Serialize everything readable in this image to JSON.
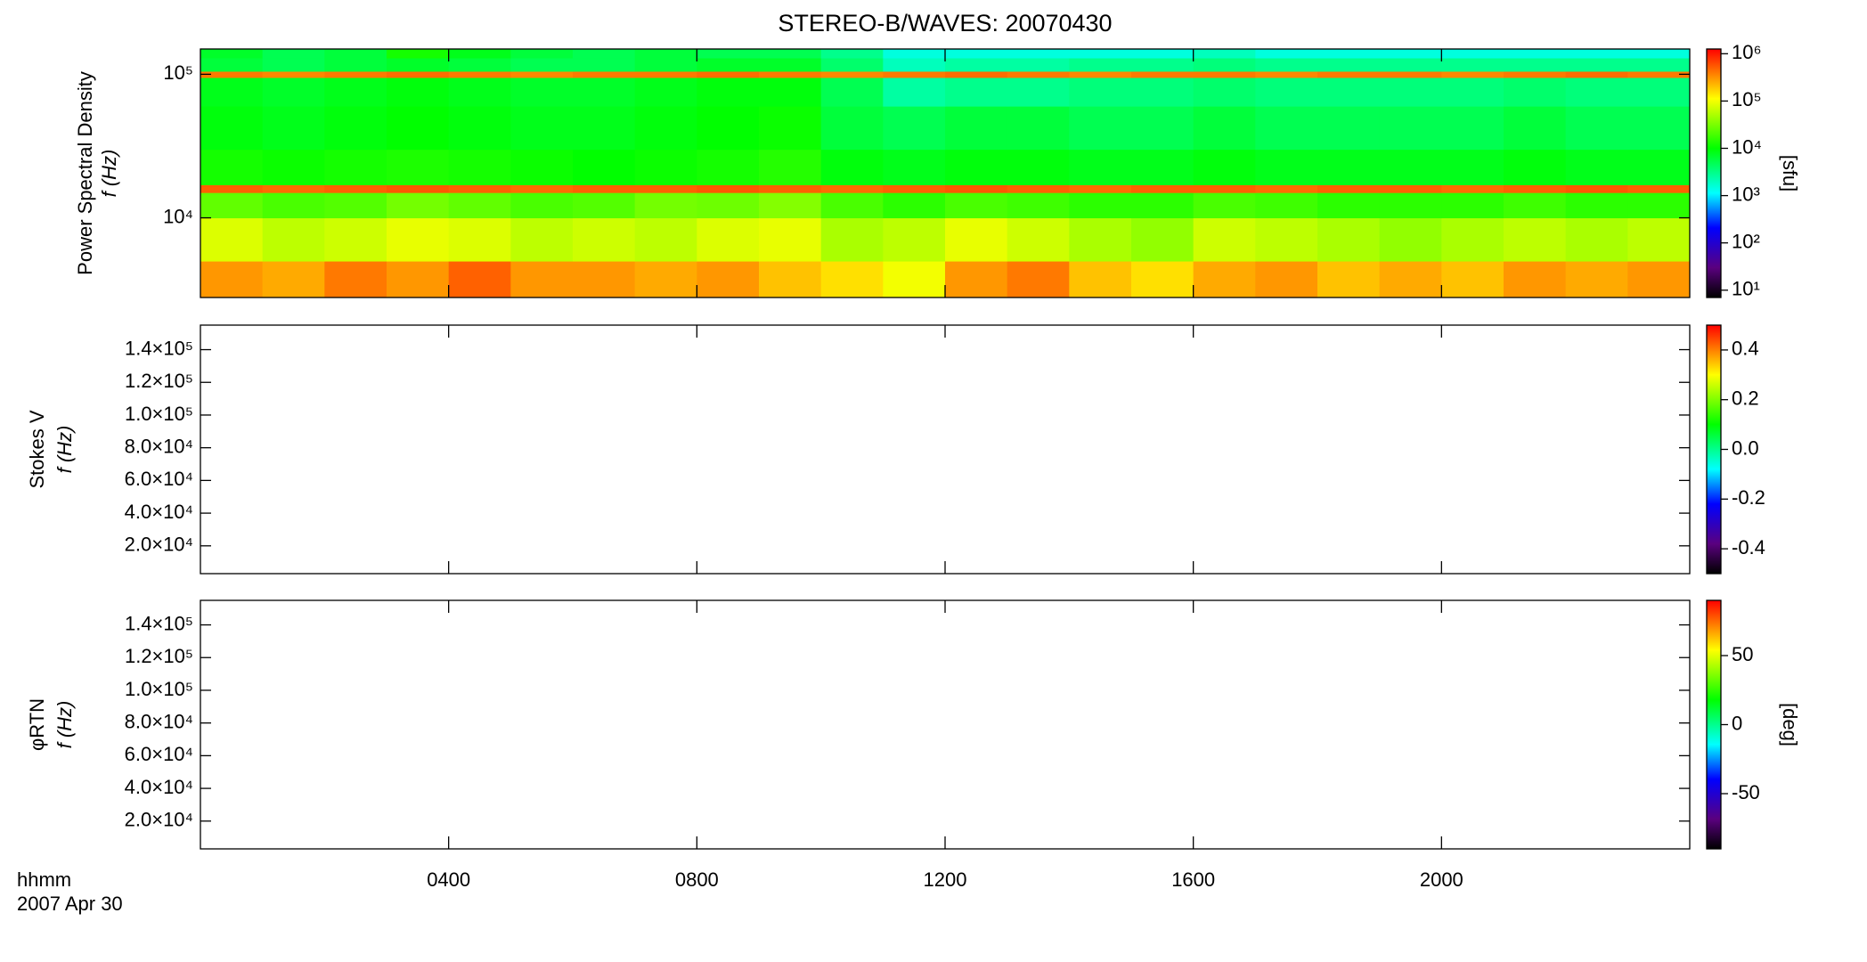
{
  "chart_data": [
    {
      "type": "heatmap",
      "title": "STEREO-B/WAVES: 20070430",
      "ylabel": [
        "Power Spectral Density",
        "f (Hz)"
      ],
      "ylog": true,
      "ylim": [
        2786,
        150000
      ],
      "yticks": [
        {
          "value": 10000,
          "label": "10⁴"
        },
        {
          "value": 100000,
          "label": "10⁵"
        }
      ],
      "xbins": [
        0,
        1,
        2,
        3,
        4,
        5,
        6,
        7,
        8,
        9,
        10,
        11,
        12,
        13,
        14,
        15,
        16,
        17,
        18,
        19,
        20,
        21,
        22,
        23,
        24
      ],
      "ybins": [
        2786,
        5000,
        10000,
        15000,
        17000,
        30000,
        60000,
        95000,
        105000,
        130000,
        150000
      ],
      "z": [
        [
          300000,
          250000,
          400000,
          300000,
          500000,
          300000,
          300000,
          250000,
          300000,
          200000,
          150000,
          100000,
          300000,
          400000,
          200000,
          150000,
          250000,
          300000,
          200000,
          250000,
          200000,
          300000,
          250000,
          300000
        ],
        [
          80000,
          60000,
          70000,
          90000,
          80000,
          60000,
          70000,
          60000,
          80000,
          90000,
          50000,
          60000,
          90000,
          70000,
          50000,
          40000,
          70000,
          60000,
          50000,
          40000,
          50000,
          60000,
          50000,
          60000
        ],
        [
          25000,
          20000,
          22000,
          30000,
          25000,
          20000,
          22000,
          30000,
          28000,
          35000,
          20000,
          15000,
          20000,
          18000,
          15000,
          15000,
          20000,
          18000,
          15000,
          15000,
          15000,
          18000,
          15000,
          15000
        ],
        [
          500000,
          450000,
          500000,
          550000,
          500000,
          450000,
          500000,
          500000,
          550000,
          500000,
          450000,
          500000,
          550000,
          500000,
          450000,
          500000,
          500000,
          450000,
          500000,
          500000,
          450000,
          500000,
          550000,
          500000
        ],
        [
          12000,
          11000,
          12000,
          13000,
          12000,
          11000,
          10000,
          11000,
          12000,
          14000,
          9000,
          8000,
          9000,
          9000,
          8000,
          8000,
          9000,
          8000,
          8000,
          8000,
          8000,
          9000,
          8000,
          8000
        ],
        [
          9000,
          8000,
          9000,
          10000,
          9000,
          8000,
          8000,
          9000,
          10000,
          11000,
          6000,
          5000,
          6000,
          6000,
          5000,
          5000,
          6000,
          5000,
          5000,
          5000,
          5000,
          6000,
          5000,
          5000
        ],
        [
          8000,
          7000,
          8000,
          9000,
          8000,
          7000,
          7000,
          8000,
          9000,
          9000,
          5000,
          2500,
          3000,
          3000,
          3500,
          3500,
          4000,
          3500,
          3500,
          3500,
          3500,
          4000,
          3500,
          3500
        ],
        [
          400000,
          350000,
          400000,
          450000,
          400000,
          350000,
          400000,
          400000,
          450000,
          400000,
          350000,
          400000,
          450000,
          400000,
          350000,
          400000,
          400000,
          350000,
          400000,
          400000,
          350000,
          400000,
          450000,
          400000
        ],
        [
          6000,
          5000,
          6000,
          7000,
          6000,
          5000,
          5000,
          6000,
          7000,
          7000,
          4000,
          2000,
          2500,
          2500,
          3000,
          3000,
          3500,
          3000,
          3000,
          3000,
          3000,
          3000,
          3000,
          3000
        ],
        [
          7000,
          5000,
          6000,
          12000,
          8000,
          6000,
          5000,
          6000,
          5000,
          5000,
          3000,
          1500,
          1500,
          1500,
          1500,
          1500,
          2000,
          1500,
          1500,
          1500,
          1500,
          1500,
          1500,
          1500
        ]
      ],
      "colormap": "rainbow",
      "zlog": true,
      "clim": [
        7,
        1260000
      ],
      "cticks": [
        {
          "value": 10,
          "label": "10¹"
        },
        {
          "value": 100,
          "label": "10²"
        },
        {
          "value": 1000,
          "label": "10³"
        },
        {
          "value": 10000,
          "label": "10⁴"
        },
        {
          "value": 100000,
          "label": "10⁵"
        },
        {
          "value": 1000000,
          "label": "10⁶"
        }
      ],
      "clabel": "[sfu]"
    },
    {
      "type": "heatmap",
      "ylabel": [
        "Stokes V",
        "f (Hz)"
      ],
      "ylim": [
        3000,
        155000
      ],
      "yticks": [
        {
          "value": 20000,
          "label": "2.0×10⁴"
        },
        {
          "value": 40000,
          "label": "4.0×10⁴"
        },
        {
          "value": 60000,
          "label": "6.0×10⁴"
        },
        {
          "value": 80000,
          "label": "8.0×10⁴"
        },
        {
          "value": 100000,
          "label": "1.0×10⁵"
        },
        {
          "value": 120000,
          "label": "1.2×10⁵"
        },
        {
          "value": 140000,
          "label": "1.4×10⁵"
        }
      ],
      "colormap": "rainbow",
      "clim": [
        -0.5,
        0.5
      ],
      "cticks": [
        -0.4,
        -0.2,
        {
          "value": 0,
          "label": "0.0"
        },
        0.2,
        0.4
      ]
    },
    {
      "type": "heatmap",
      "ylabel": [
        "φRTN",
        "f (Hz)"
      ],
      "ylim": [
        3000,
        155000
      ],
      "yticks": [
        {
          "value": 20000,
          "label": "2.0×10⁴"
        },
        {
          "value": 40000,
          "label": "4.0×10⁴"
        },
        {
          "value": 60000,
          "label": "6.0×10⁴"
        },
        {
          "value": 80000,
          "label": "8.0×10⁴"
        },
        {
          "value": 100000,
          "label": "1.0×10⁵"
        },
        {
          "value": 120000,
          "label": "1.2×10⁵"
        },
        {
          "value": 140000,
          "label": "1.4×10⁵"
        }
      ],
      "colormap": "rainbow",
      "clim": [
        -90,
        90
      ],
      "cticks": [
        -50,
        0,
        50
      ],
      "clabel": "[deg]",
      "xlim": [
        0,
        24
      ],
      "xticks": [
        {
          "value": 4,
          "label": "0400"
        },
        {
          "value": 8,
          "label": "0800"
        },
        {
          "value": 12,
          "label": "1200"
        },
        {
          "value": 16,
          "label": "1600"
        },
        {
          "value": 20,
          "label": "2000"
        }
      ],
      "xlabel": "hhmm",
      "date_label": "2007 Apr 30"
    }
  ]
}
